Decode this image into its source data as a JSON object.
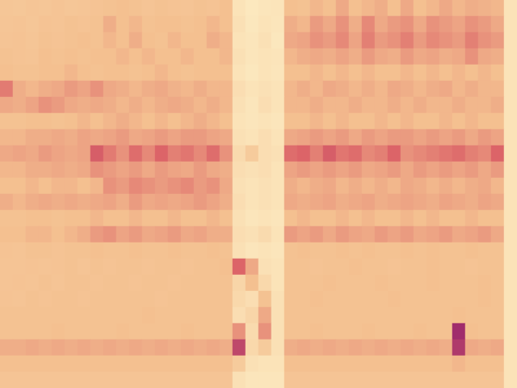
{
  "chart_data": {
    "type": "heatmap",
    "tick_labels": false,
    "zlim": [
      0,
      1
    ],
    "cells": [
      [
        0.66,
        0.67,
        0.65,
        0.66,
        0.64,
        0.66,
        0.65,
        0.63,
        0.62,
        0.6,
        0.62,
        0.64,
        0.62,
        0.63,
        0.64,
        0.62,
        0.63,
        0.6,
        0.9,
        0.94,
        0.92,
        0.91,
        0.6,
        0.62,
        0.58,
        0.6,
        0.55,
        0.6,
        0.58,
        0.56,
        0.6,
        0.55,
        0.6,
        0.58,
        0.55,
        0.58,
        0.56,
        0.57,
        0.58,
        0.9
      ],
      [
        0.65,
        0.64,
        0.66,
        0.63,
        0.64,
        0.62,
        0.63,
        0.62,
        0.56,
        0.6,
        0.58,
        0.62,
        0.6,
        0.6,
        0.62,
        0.6,
        0.58,
        0.6,
        0.88,
        0.93,
        0.9,
        0.92,
        0.56,
        0.58,
        0.52,
        0.55,
        0.5,
        0.56,
        0.48,
        0.55,
        0.52,
        0.5,
        0.55,
        0.5,
        0.52,
        0.54,
        0.5,
        0.52,
        0.55,
        0.9
      ],
      [
        0.64,
        0.63,
        0.65,
        0.62,
        0.63,
        0.62,
        0.6,
        0.62,
        0.58,
        0.6,
        0.56,
        0.6,
        0.62,
        0.58,
        0.6,
        0.6,
        0.56,
        0.58,
        0.9,
        0.92,
        0.88,
        0.93,
        0.55,
        0.54,
        0.5,
        0.52,
        0.48,
        0.54,
        0.46,
        0.52,
        0.5,
        0.46,
        0.52,
        0.48,
        0.5,
        0.52,
        0.46,
        0.5,
        0.52,
        0.9
      ],
      [
        0.62,
        0.63,
        0.64,
        0.6,
        0.62,
        0.6,
        0.62,
        0.6,
        0.6,
        0.58,
        0.6,
        0.58,
        0.6,
        0.6,
        0.58,
        0.6,
        0.6,
        0.58,
        0.88,
        0.92,
        0.9,
        0.91,
        0.58,
        0.56,
        0.55,
        0.56,
        0.54,
        0.56,
        0.52,
        0.55,
        0.56,
        0.52,
        0.55,
        0.54,
        0.56,
        0.55,
        0.5,
        0.55,
        0.56,
        0.9
      ],
      [
        0.6,
        0.62,
        0.62,
        0.6,
        0.6,
        0.58,
        0.6,
        0.62,
        0.6,
        0.6,
        0.62,
        0.6,
        0.58,
        0.6,
        0.62,
        0.6,
        0.6,
        0.6,
        0.9,
        0.93,
        0.9,
        0.92,
        0.6,
        0.6,
        0.58,
        0.6,
        0.58,
        0.6,
        0.58,
        0.6,
        0.6,
        0.58,
        0.6,
        0.58,
        0.6,
        0.58,
        0.6,
        0.58,
        0.6,
        0.9
      ],
      [
        0.45,
        0.56,
        0.58,
        0.56,
        0.55,
        0.52,
        0.54,
        0.5,
        0.55,
        0.56,
        0.58,
        0.56,
        0.55,
        0.57,
        0.58,
        0.56,
        0.58,
        0.58,
        0.86,
        0.9,
        0.88,
        0.9,
        0.58,
        0.56,
        0.58,
        0.55,
        0.56,
        0.58,
        0.56,
        0.58,
        0.55,
        0.56,
        0.58,
        0.56,
        0.55,
        0.58,
        0.56,
        0.58,
        0.58,
        0.9
      ],
      [
        0.55,
        0.56,
        0.54,
        0.5,
        0.52,
        0.55,
        0.56,
        0.55,
        0.56,
        0.58,
        0.56,
        0.58,
        0.56,
        0.55,
        0.56,
        0.58,
        0.56,
        0.58,
        0.88,
        0.92,
        0.86,
        0.9,
        0.58,
        0.58,
        0.56,
        0.58,
        0.58,
        0.56,
        0.58,
        0.58,
        0.56,
        0.58,
        0.56,
        0.58,
        0.58,
        0.56,
        0.58,
        0.58,
        0.56,
        0.9
      ],
      [
        0.62,
        0.62,
        0.6,
        0.6,
        0.62,
        0.6,
        0.58,
        0.6,
        0.58,
        0.56,
        0.58,
        0.6,
        0.58,
        0.6,
        0.58,
        0.56,
        0.58,
        0.6,
        0.9,
        0.92,
        0.9,
        0.92,
        0.6,
        0.6,
        0.58,
        0.6,
        0.58,
        0.6,
        0.6,
        0.58,
        0.6,
        0.58,
        0.6,
        0.6,
        0.58,
        0.6,
        0.58,
        0.6,
        0.6,
        0.9
      ],
      [
        0.58,
        0.58,
        0.56,
        0.56,
        0.55,
        0.56,
        0.54,
        0.55,
        0.54,
        0.52,
        0.55,
        0.54,
        0.52,
        0.54,
        0.52,
        0.52,
        0.54,
        0.55,
        0.88,
        0.9,
        0.86,
        0.9,
        0.55,
        0.54,
        0.52,
        0.54,
        0.52,
        0.55,
        0.52,
        0.54,
        0.52,
        0.52,
        0.54,
        0.52,
        0.54,
        0.52,
        0.55,
        0.52,
        0.54,
        0.9
      ],
      [
        0.55,
        0.54,
        0.55,
        0.52,
        0.54,
        0.55,
        0.54,
        0.38,
        0.45,
        0.5,
        0.42,
        0.48,
        0.4,
        0.46,
        0.44,
        0.48,
        0.42,
        0.5,
        0.84,
        0.7,
        0.86,
        0.88,
        0.42,
        0.4,
        0.46,
        0.38,
        0.44,
        0.42,
        0.48,
        0.46,
        0.4,
        0.5,
        0.48,
        0.46,
        0.44,
        0.42,
        0.46,
        0.48,
        0.4,
        0.9
      ],
      [
        0.58,
        0.58,
        0.56,
        0.56,
        0.55,
        0.56,
        0.55,
        0.5,
        0.52,
        0.54,
        0.52,
        0.55,
        0.52,
        0.54,
        0.55,
        0.52,
        0.55,
        0.56,
        0.86,
        0.88,
        0.86,
        0.9,
        0.54,
        0.52,
        0.54,
        0.52,
        0.54,
        0.52,
        0.55,
        0.54,
        0.52,
        0.55,
        0.52,
        0.54,
        0.52,
        0.54,
        0.52,
        0.55,
        0.52,
        0.9
      ],
      [
        0.6,
        0.6,
        0.58,
        0.6,
        0.58,
        0.58,
        0.6,
        0.58,
        0.5,
        0.52,
        0.48,
        0.5,
        0.52,
        0.5,
        0.48,
        0.52,
        0.5,
        0.55,
        0.88,
        0.9,
        0.88,
        0.9,
        0.56,
        0.58,
        0.56,
        0.55,
        0.58,
        0.56,
        0.58,
        0.56,
        0.58,
        0.55,
        0.56,
        0.58,
        0.56,
        0.58,
        0.56,
        0.55,
        0.58,
        0.9
      ],
      [
        0.56,
        0.58,
        0.56,
        0.55,
        0.56,
        0.55,
        0.56,
        0.55,
        0.54,
        0.56,
        0.52,
        0.55,
        0.54,
        0.55,
        0.54,
        0.52,
        0.54,
        0.56,
        0.86,
        0.9,
        0.88,
        0.9,
        0.55,
        0.56,
        0.55,
        0.54,
        0.56,
        0.55,
        0.54,
        0.56,
        0.55,
        0.54,
        0.55,
        0.56,
        0.54,
        0.55,
        0.56,
        0.54,
        0.55,
        0.9
      ],
      [
        0.62,
        0.62,
        0.6,
        0.6,
        0.62,
        0.6,
        0.6,
        0.58,
        0.6,
        0.6,
        0.58,
        0.6,
        0.6,
        0.58,
        0.6,
        0.6,
        0.58,
        0.6,
        0.88,
        0.92,
        0.9,
        0.92,
        0.6,
        0.58,
        0.6,
        0.6,
        0.58,
        0.6,
        0.58,
        0.6,
        0.6,
        0.58,
        0.6,
        0.58,
        0.6,
        0.6,
        0.58,
        0.6,
        0.6,
        0.9
      ],
      [
        0.6,
        0.6,
        0.58,
        0.58,
        0.6,
        0.58,
        0.56,
        0.52,
        0.5,
        0.54,
        0.52,
        0.55,
        0.54,
        0.52,
        0.55,
        0.54,
        0.56,
        0.56,
        0.86,
        0.88,
        0.84,
        0.9,
        0.52,
        0.54,
        0.52,
        0.55,
        0.52,
        0.54,
        0.55,
        0.52,
        0.54,
        0.52,
        0.55,
        0.54,
        0.52,
        0.55,
        0.54,
        0.52,
        0.55,
        0.9
      ],
      [
        0.63,
        0.64,
        0.62,
        0.62,
        0.63,
        0.62,
        0.62,
        0.6,
        0.62,
        0.62,
        0.6,
        0.62,
        0.62,
        0.6,
        0.62,
        0.62,
        0.6,
        0.62,
        0.88,
        0.92,
        0.9,
        0.92,
        0.62,
        0.6,
        0.62,
        0.62,
        0.6,
        0.62,
        0.6,
        0.62,
        0.62,
        0.6,
        0.62,
        0.6,
        0.62,
        0.62,
        0.6,
        0.62,
        0.62,
        0.9
      ],
      [
        0.64,
        0.64,
        0.63,
        0.64,
        0.63,
        0.62,
        0.64,
        0.62,
        0.63,
        0.62,
        0.62,
        0.63,
        0.62,
        0.62,
        0.63,
        0.62,
        0.62,
        0.6,
        0.4,
        0.55,
        0.88,
        0.9,
        0.62,
        0.62,
        0.63,
        0.62,
        0.62,
        0.6,
        0.62,
        0.62,
        0.63,
        0.62,
        0.62,
        0.6,
        0.62,
        0.62,
        0.63,
        0.62,
        0.62,
        0.9
      ],
      [
        0.64,
        0.63,
        0.64,
        0.62,
        0.64,
        0.62,
        0.62,
        0.63,
        0.62,
        0.62,
        0.63,
        0.62,
        0.62,
        0.63,
        0.62,
        0.62,
        0.62,
        0.62,
        0.8,
        0.6,
        0.82,
        0.9,
        0.62,
        0.62,
        0.62,
        0.6,
        0.62,
        0.62,
        0.62,
        0.6,
        0.62,
        0.62,
        0.62,
        0.6,
        0.62,
        0.62,
        0.62,
        0.6,
        0.62,
        0.9
      ],
      [
        0.63,
        0.64,
        0.62,
        0.63,
        0.62,
        0.62,
        0.63,
        0.62,
        0.62,
        0.62,
        0.62,
        0.62,
        0.63,
        0.62,
        0.62,
        0.62,
        0.62,
        0.62,
        0.82,
        0.86,
        0.62,
        0.88,
        0.62,
        0.62,
        0.6,
        0.62,
        0.62,
        0.62,
        0.62,
        0.62,
        0.6,
        0.62,
        0.62,
        0.62,
        0.62,
        0.62,
        0.62,
        0.6,
        0.62,
        0.9
      ],
      [
        0.62,
        0.62,
        0.62,
        0.62,
        0.62,
        0.62,
        0.62,
        0.62,
        0.62,
        0.62,
        0.62,
        0.6,
        0.62,
        0.62,
        0.62,
        0.62,
        0.62,
        0.62,
        0.86,
        0.8,
        0.55,
        0.88,
        0.62,
        0.62,
        0.62,
        0.62,
        0.62,
        0.62,
        0.62,
        0.62,
        0.62,
        0.62,
        0.62,
        0.62,
        0.62,
        0.6,
        0.62,
        0.62,
        0.62,
        0.9
      ],
      [
        0.62,
        0.62,
        0.62,
        0.62,
        0.6,
        0.62,
        0.62,
        0.62,
        0.62,
        0.6,
        0.62,
        0.62,
        0.62,
        0.62,
        0.6,
        0.62,
        0.62,
        0.62,
        0.5,
        0.84,
        0.5,
        0.88,
        0.62,
        0.62,
        0.6,
        0.62,
        0.62,
        0.62,
        0.6,
        0.62,
        0.62,
        0.62,
        0.6,
        0.62,
        0.62,
        0.2,
        0.6,
        0.62,
        0.62,
        0.9
      ],
      [
        0.56,
        0.56,
        0.55,
        0.56,
        0.55,
        0.56,
        0.55,
        0.56,
        0.55,
        0.56,
        0.55,
        0.56,
        0.55,
        0.56,
        0.55,
        0.56,
        0.55,
        0.56,
        0.3,
        0.82,
        0.7,
        0.88,
        0.56,
        0.55,
        0.56,
        0.55,
        0.56,
        0.55,
        0.56,
        0.55,
        0.56,
        0.55,
        0.56,
        0.55,
        0.56,
        0.25,
        0.55,
        0.56,
        0.55,
        0.9
      ],
      [
        0.6,
        0.6,
        0.6,
        0.6,
        0.6,
        0.6,
        0.6,
        0.6,
        0.6,
        0.6,
        0.6,
        0.6,
        0.6,
        0.6,
        0.6,
        0.6,
        0.6,
        0.6,
        0.7,
        0.88,
        0.9,
        0.9,
        0.6,
        0.6,
        0.6,
        0.6,
        0.6,
        0.6,
        0.6,
        0.6,
        0.6,
        0.6,
        0.6,
        0.6,
        0.6,
        0.58,
        0.6,
        0.6,
        0.6,
        0.9
      ],
      [
        0.64,
        0.64,
        0.64,
        0.64,
        0.64,
        0.64,
        0.64,
        0.64,
        0.64,
        0.64,
        0.64,
        0.64,
        0.64,
        0.64,
        0.64,
        0.64,
        0.64,
        0.64,
        0.88,
        0.92,
        0.92,
        0.92,
        0.64,
        0.64,
        0.64,
        0.64,
        0.64,
        0.64,
        0.64,
        0.64,
        0.64,
        0.64,
        0.64,
        0.64,
        0.64,
        0.64,
        0.64,
        0.64,
        0.64,
        0.9
      ]
    ]
  }
}
